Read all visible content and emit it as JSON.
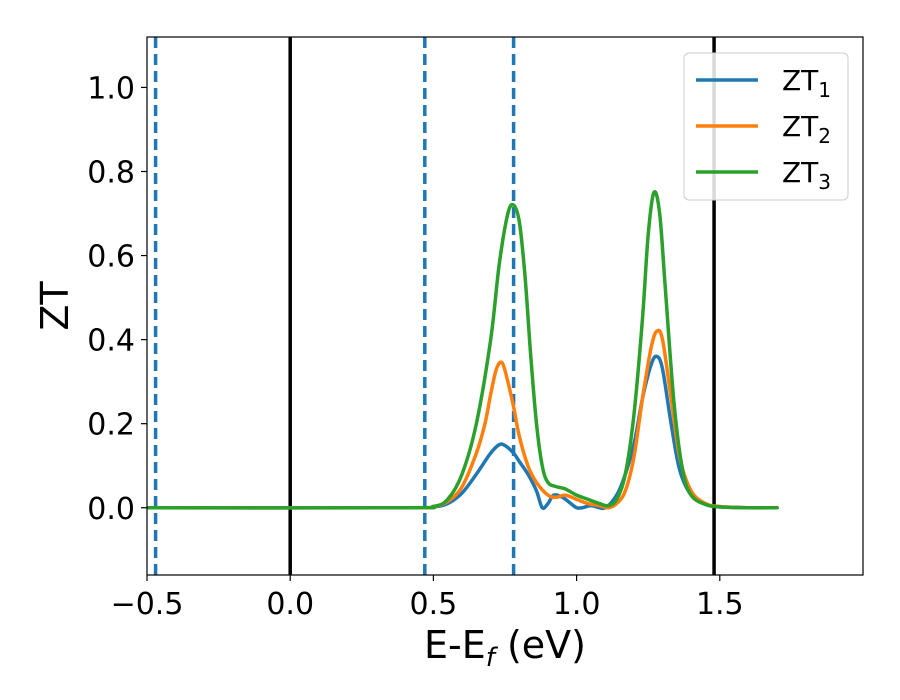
{
  "chart_data": {
    "type": "line",
    "title": "",
    "xlabel": "E-E",
    "xlabel_sub": "f",
    "xlabel_unit": " (eV)",
    "ylabel": "ZT",
    "xlim": [
      -0.5,
      2.0
    ],
    "ylim": [
      -0.16,
      1.12
    ],
    "grid": false,
    "legend_position": "top-right",
    "x_ticks": [
      {
        "value": -0.5,
        "label": "−0.5"
      },
      {
        "value": 0.0,
        "label": "0.0"
      },
      {
        "value": 0.5,
        "label": "0.5"
      },
      {
        "value": 1.0,
        "label": "1.0"
      },
      {
        "value": 1.5,
        "label": "1.5"
      }
    ],
    "y_ticks": [
      {
        "value": 0.0,
        "label": "0.0"
      },
      {
        "value": 0.2,
        "label": "0.2"
      },
      {
        "value": 0.4,
        "label": "0.4"
      },
      {
        "value": 0.6,
        "label": "0.6"
      },
      {
        "value": 0.8,
        "label": "0.8"
      },
      {
        "value": 1.0,
        "label": "1.0"
      }
    ],
    "vertical_lines": [
      {
        "x": -0.47,
        "style": "dashed",
        "color": "#1f77b4"
      },
      {
        "x": 0.0,
        "style": "solid",
        "color": "#000000"
      },
      {
        "x": 0.47,
        "style": "dashed",
        "color": "#1f77b4"
      },
      {
        "x": 0.78,
        "style": "dashed",
        "color": "#1f77b4"
      },
      {
        "x": 1.48,
        "style": "solid",
        "color": "#000000"
      }
    ],
    "series": [
      {
        "name": "ZT",
        "sub": "1",
        "color": "#1f77b4",
        "x": [
          -0.5,
          0.4,
          0.5,
          0.55,
          0.6,
          0.65,
          0.7,
          0.73,
          0.75,
          0.78,
          0.8,
          0.83,
          0.86,
          0.88,
          0.9,
          0.92,
          0.95,
          0.98,
          1.0,
          1.02,
          1.05,
          1.08,
          1.1,
          1.13,
          1.16,
          1.2,
          1.23,
          1.26,
          1.28,
          1.3,
          1.33,
          1.36,
          1.4,
          1.45,
          1.5,
          1.6,
          1.7
        ],
        "y": [
          0.0,
          0.0,
          0.002,
          0.01,
          0.035,
          0.08,
          0.13,
          0.15,
          0.148,
          0.13,
          0.11,
          0.08,
          0.04,
          0.0,
          0.01,
          0.03,
          0.025,
          0.01,
          0.0,
          0.0,
          0.005,
          0.0,
          0.0,
          0.02,
          0.06,
          0.15,
          0.26,
          0.34,
          0.36,
          0.33,
          0.2,
          0.09,
          0.03,
          0.008,
          0.002,
          0.0,
          0.0
        ]
      },
      {
        "name": "ZT",
        "sub": "2",
        "color": "#ff7f0e",
        "x": [
          -0.5,
          0.4,
          0.5,
          0.55,
          0.6,
          0.65,
          0.68,
          0.7,
          0.72,
          0.74,
          0.76,
          0.78,
          0.8,
          0.83,
          0.86,
          0.9,
          0.93,
          0.96,
          1.0,
          1.04,
          1.08,
          1.11,
          1.14,
          1.17,
          1.2,
          1.23,
          1.26,
          1.28,
          1.3,
          1.33,
          1.36,
          1.4,
          1.45,
          1.5,
          1.6,
          1.7
        ],
        "y": [
          0.0,
          0.0,
          0.003,
          0.015,
          0.05,
          0.13,
          0.2,
          0.27,
          0.33,
          0.345,
          0.3,
          0.24,
          0.17,
          0.1,
          0.06,
          0.03,
          0.025,
          0.03,
          0.02,
          0.01,
          0.005,
          0.0,
          0.01,
          0.04,
          0.12,
          0.26,
          0.38,
          0.42,
          0.4,
          0.26,
          0.12,
          0.04,
          0.01,
          0.003,
          0.0,
          0.0
        ]
      },
      {
        "name": "ZT",
        "sub": "3",
        "color": "#2ca02c",
        "x": [
          -0.5,
          0.4,
          0.5,
          0.55,
          0.6,
          0.65,
          0.7,
          0.73,
          0.76,
          0.78,
          0.8,
          0.82,
          0.84,
          0.86,
          0.88,
          0.9,
          0.93,
          0.96,
          1.0,
          1.04,
          1.08,
          1.11,
          1.14,
          1.17,
          1.2,
          1.23,
          1.25,
          1.27,
          1.29,
          1.31,
          1.34,
          1.37,
          1.4,
          1.45,
          1.5,
          1.6,
          1.7
        ],
        "y": [
          0.0,
          0.0,
          0.003,
          0.02,
          0.08,
          0.2,
          0.4,
          0.58,
          0.7,
          0.72,
          0.68,
          0.55,
          0.36,
          0.2,
          0.1,
          0.06,
          0.05,
          0.045,
          0.03,
          0.02,
          0.01,
          0.005,
          0.02,
          0.08,
          0.22,
          0.45,
          0.65,
          0.75,
          0.7,
          0.52,
          0.25,
          0.09,
          0.03,
          0.008,
          0.002,
          0.0,
          0.0
        ]
      }
    ]
  }
}
